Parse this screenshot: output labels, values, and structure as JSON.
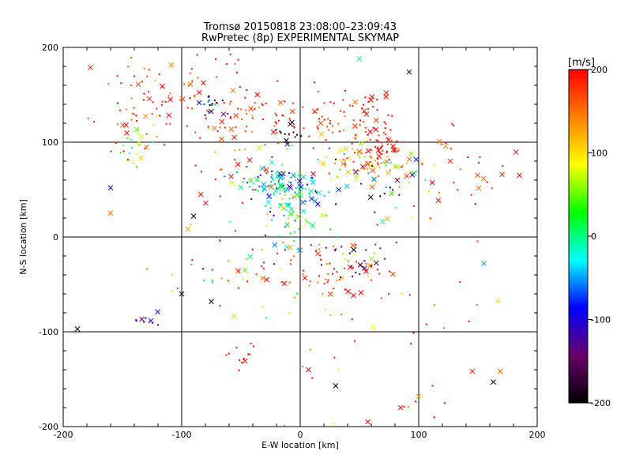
{
  "chart_data": {
    "type": "scatter",
    "title_line1": "Tromsø 20150818 23:08:00–23:09:43",
    "title_line2": "RwPretec (8p) EXPERIMENTAL SKYMAP",
    "xlabel": "E-W location [km]",
    "ylabel": "N-S location [km]",
    "xlim": [
      -200,
      200
    ],
    "ylim": [
      -200,
      200
    ],
    "xticks": [
      -200,
      -100,
      0,
      100,
      200
    ],
    "yticks": [
      -200,
      -100,
      0,
      100,
      200
    ],
    "grid": true,
    "colorbar": {
      "unit_label": "[m/s]",
      "min": -200,
      "max": 200,
      "ticks": [
        200,
        100,
        0,
        -100,
        -200
      ],
      "colors": [
        "#000000",
        "#6a006a",
        "#0000ff",
        "#00ffff",
        "#00ff00",
        "#ffff00",
        "#ff8000",
        "#ff0000"
      ]
    },
    "clusters": [
      {
        "x": -135,
        "y": 100,
        "sx": 9,
        "sy": 14,
        "n": 22,
        "v": 60,
        "vsd": 40
      },
      {
        "x": -130,
        "y": 145,
        "sx": 14,
        "sy": 25,
        "n": 28,
        "v": 170,
        "vsd": 40
      },
      {
        "x": -90,
        "y": 150,
        "sx": 25,
        "sy": 25,
        "n": 55,
        "v": 180,
        "vsd": 30
      },
      {
        "x": -75,
        "y": 140,
        "sx": 5,
        "sy": 5,
        "n": 18,
        "v": -130,
        "vsd": 60
      },
      {
        "x": -40,
        "y": 125,
        "sx": 22,
        "sy": 18,
        "n": 45,
        "v": 185,
        "vsd": 25
      },
      {
        "x": -10,
        "y": 105,
        "sx": 6,
        "sy": 6,
        "n": 14,
        "v": -190,
        "vsd": 20
      },
      {
        "x": 30,
        "y": 125,
        "sx": 30,
        "sy": 15,
        "n": 75,
        "v": 185,
        "vsd": 25
      },
      {
        "x": 65,
        "y": 98,
        "sx": 12,
        "sy": 9,
        "n": 55,
        "v": 190,
        "vsd": 15
      },
      {
        "x": 55,
        "y": 78,
        "sx": 28,
        "sy": 12,
        "n": 70,
        "v": 125,
        "vsd": 55
      },
      {
        "x": 70,
        "y": 60,
        "sx": 30,
        "sy": 15,
        "n": 40,
        "v": -40,
        "vsd": 110
      },
      {
        "x": -20,
        "y": 55,
        "sx": 15,
        "sy": 10,
        "n": 85,
        "v": -40,
        "vsd": 40
      },
      {
        "x": 0,
        "y": 40,
        "sx": 15,
        "sy": 25,
        "n": 55,
        "v": 0,
        "vsd": 70
      },
      {
        "x": -10,
        "y": 10,
        "sx": 22,
        "sy": 18,
        "n": 30,
        "v": -20,
        "vsd": 80
      },
      {
        "x": 30,
        "y": -35,
        "sx": 28,
        "sy": 18,
        "n": 85,
        "v": 170,
        "vsd": 50
      },
      {
        "x": 45,
        "y": -25,
        "sx": 15,
        "sy": 12,
        "n": 20,
        "v": -170,
        "vsd": 30
      },
      {
        "x": -60,
        "y": -35,
        "sx": 28,
        "sy": 20,
        "n": 35,
        "v": 130,
        "vsd": 110
      },
      {
        "x": -130,
        "y": -88,
        "sx": 6,
        "sy": 4,
        "n": 10,
        "v": -110,
        "vsd": 25
      },
      {
        "x": 130,
        "y": 60,
        "sx": 28,
        "sy": 30,
        "n": 35,
        "v": 190,
        "vsd": 40
      },
      {
        "x": 120,
        "y": -130,
        "sx": 30,
        "sy": 40,
        "n": 20,
        "v": 190,
        "vsd": 60
      },
      {
        "x": -50,
        "y": -120,
        "sx": 10,
        "sy": 12,
        "n": 12,
        "v": 195,
        "vsd": 10
      },
      {
        "x": 20,
        "y": -120,
        "sx": 40,
        "sy": 50,
        "n": 15,
        "v": 150,
        "vsd": 80
      },
      {
        "x": -150,
        "y": 130,
        "sx": 20,
        "sy": 35,
        "n": 18,
        "v": 185,
        "vsd": 25
      },
      {
        "x": -70,
        "y": 60,
        "sx": 30,
        "sy": 30,
        "n": 30,
        "v": 150,
        "vsd": 90
      }
    ],
    "markers": [
      {
        "x": 163,
        "y": -153,
        "v": -200,
        "shape": "x"
      },
      {
        "x": 57,
        "y": -195,
        "v": 200,
        "shape": "x"
      },
      {
        "x": 50,
        "y": 188,
        "v": 0,
        "shape": "x"
      },
      {
        "x": -75,
        "y": -68,
        "v": -200,
        "shape": "x"
      },
      {
        "x": 185,
        "y": 65,
        "v": 200,
        "shape": "x"
      },
      {
        "x": 7,
        "y": -140,
        "v": 200,
        "shape": "x"
      },
      {
        "x": -100,
        "y": -60,
        "v": -200,
        "shape": "x"
      },
      {
        "x": -90,
        "y": 22,
        "v": -200,
        "shape": "x"
      },
      {
        "x": -160,
        "y": 52,
        "v": -120,
        "shape": "x"
      },
      {
        "x": 155,
        "y": -28,
        "v": -50,
        "shape": "x"
      },
      {
        "x": -188,
        "y": -97,
        "v": -200,
        "shape": "x"
      },
      {
        "x": 92,
        "y": 174,
        "v": -200,
        "shape": "x"
      },
      {
        "x": 100,
        "y": -168,
        "v": 130,
        "shape": "x"
      },
      {
        "x": 30,
        "y": -157,
        "v": -200,
        "shape": "x"
      }
    ]
  }
}
